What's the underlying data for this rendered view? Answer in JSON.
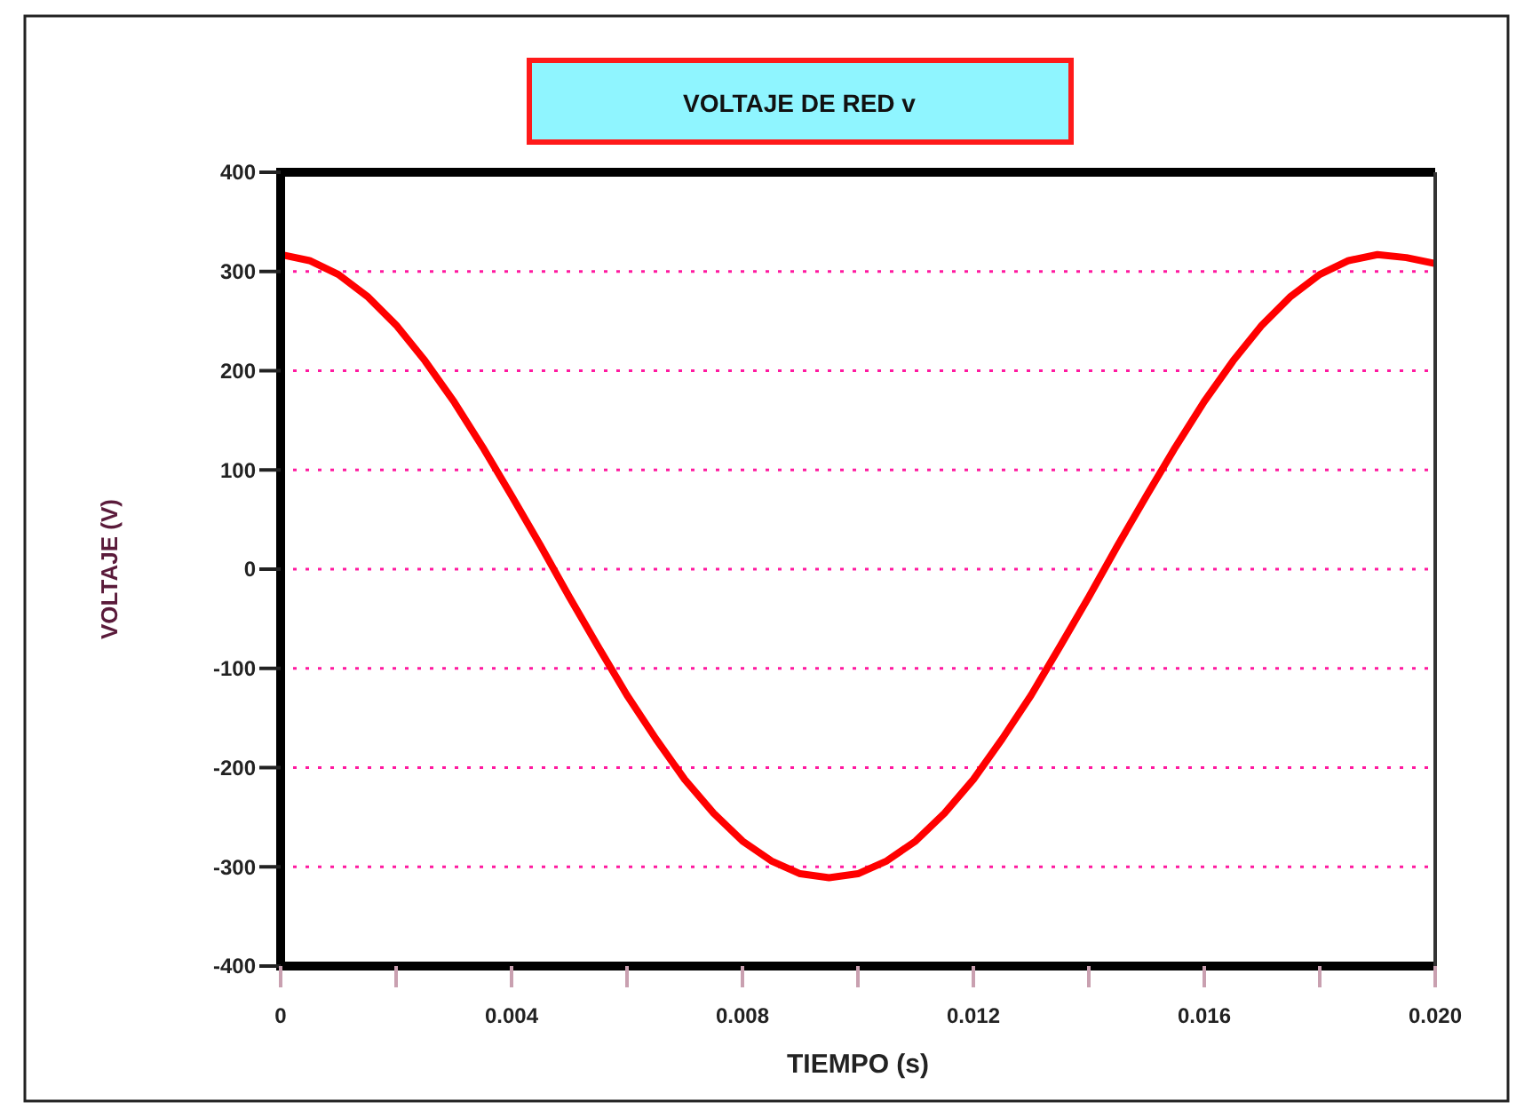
{
  "chart_data": {
    "type": "line",
    "title": "VOLTAJE DE RED v",
    "xlabel": "TIEMPO (s)",
    "ylabel": "VOLTAJE (V)",
    "x": [
      0,
      0.0005,
      0.001,
      0.0015,
      0.002,
      0.0025,
      0.003,
      0.0035,
      0.004,
      0.0045,
      0.005,
      0.0055,
      0.006,
      0.0065,
      0.007,
      0.0075,
      0.008,
      0.0085,
      0.009,
      0.0095,
      0.01,
      0.0105,
      0.011,
      0.0115,
      0.012,
      0.0125,
      0.013,
      0.0135,
      0.014,
      0.0145,
      0.015,
      0.0155,
      0.016,
      0.0165,
      0.017,
      0.0175,
      0.018,
      0.0185,
      0.019,
      0.0195,
      0.02
    ],
    "series": [
      {
        "color": "#ff0000",
        "values": [
          317,
          311,
          297,
          275,
          246,
          210,
          169,
          123,
          74,
          24,
          -28,
          -78,
          -127,
          -171,
          -212,
          -246,
          -274,
          -294,
          -307,
          -311,
          -307,
          -294,
          -274,
          -246,
          -212,
          -171,
          -127,
          -78,
          -28,
          24,
          74,
          123,
          169,
          210,
          246,
          275,
          297,
          311,
          317,
          314,
          308
        ]
      }
    ],
    "xlim": [
      0,
      0.02
    ],
    "xticks": [
      0,
      {
        "value": 0.002,
        "label": null
      },
      0.004,
      {
        "value": 0.006,
        "label": null
      },
      0.008,
      {
        "value": 0.01,
        "label": null
      },
      0.012,
      {
        "value": 0.014,
        "label": null
      },
      0.016,
      {
        "value": 0.018,
        "label": null
      },
      {
        "value": 0.02,
        "label": "0.020"
      }
    ],
    "ylim": [
      -400,
      400
    ],
    "yticks": [
      -400,
      -300,
      -200,
      -100,
      0,
      100,
      200,
      300,
      400
    ],
    "grid": "y",
    "line_style": "solid",
    "marker": "none"
  }
}
